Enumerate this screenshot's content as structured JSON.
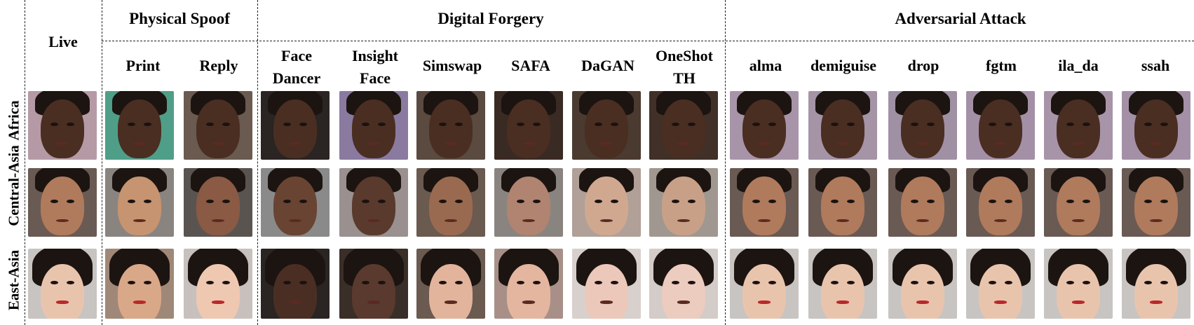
{
  "groups": {
    "physical": "Physical Spoof",
    "digital": "Digital Forgery",
    "adversarial": "Adversarial Attack"
  },
  "columns": {
    "live": "Live",
    "print": "Print",
    "reply": "Reply",
    "face_dancer": [
      "Face",
      "Dancer"
    ],
    "insight_face": [
      "Insight",
      "Face"
    ],
    "simswap": "Simswap",
    "safa": "SAFA",
    "dagan": "DaGAN",
    "oneshot_th": [
      "OneShot",
      "TH"
    ],
    "alma": "alma",
    "demiguise": "demiguise",
    "drop": "drop",
    "fgtm": "fgtm",
    "ila_da": "ila_da",
    "ssah": "ssah"
  },
  "rows": [
    "Africa",
    "Central-Asia",
    "East-Asia"
  ],
  "colors": {
    "africa_skin": "#4a2e22",
    "central_asia_skin": "#b07a5c",
    "east_asia_skin": "#e9c4ad",
    "hair_dark": "#1c1410",
    "lips_red": "#b8282c"
  }
}
